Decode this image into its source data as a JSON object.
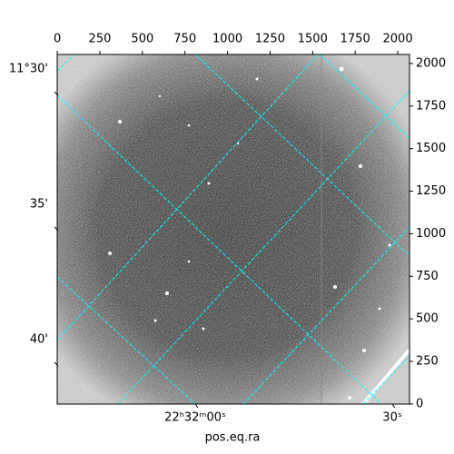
{
  "chart_data": {
    "type": "image",
    "xlabel": "pos.eq.ra",
    "xlim": [
      -0.5,
      2069
    ],
    "ylim": [
      -0.5,
      2053
    ],
    "xticks": [
      0,
      250,
      500,
      750,
      1000,
      1250,
      1500,
      1750,
      2000
    ],
    "yticks": [
      0,
      250,
      500,
      750,
      1000,
      1250,
      1500,
      1750,
      2000
    ],
    "dec_ticks": [
      "11°30'",
      "35'",
      "40'"
    ],
    "ra_ticks": [
      "22ʰ32ᵐ00ˢ",
      "30ˢ"
    ],
    "grid_color": "#00ffff"
  }
}
